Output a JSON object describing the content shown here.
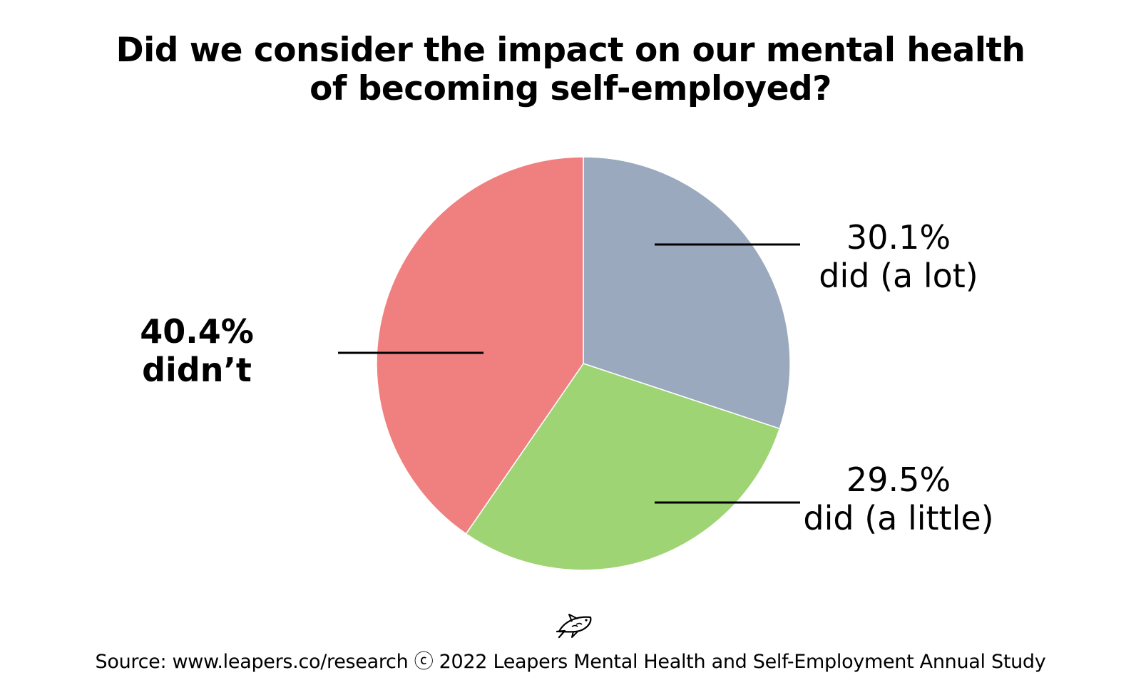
{
  "title": {
    "line1": "Did we consider the impact on our mental health",
    "line2": "of becoming self-employed?"
  },
  "chart_data": {
    "type": "pie",
    "title": "Did we consider the impact on our mental health of becoming self-employed?",
    "categories": [
      "did (a lot)",
      "did (a little)",
      "didn’t"
    ],
    "values": [
      30.1,
      29.5,
      40.4
    ],
    "value_labels": [
      "30.1%",
      "29.5%",
      "40.4%"
    ],
    "colors": [
      "#9aa9bd",
      "#9fd474",
      "#f08080"
    ],
    "start_angle": "12 o'clock",
    "direction": "clockwise",
    "legend": "none"
  },
  "source": "Source: www.leapers.co/research ⓒ 2022 Leapers Mental Health and Self-Employment Annual Study",
  "logo_icon": "fish-icon"
}
